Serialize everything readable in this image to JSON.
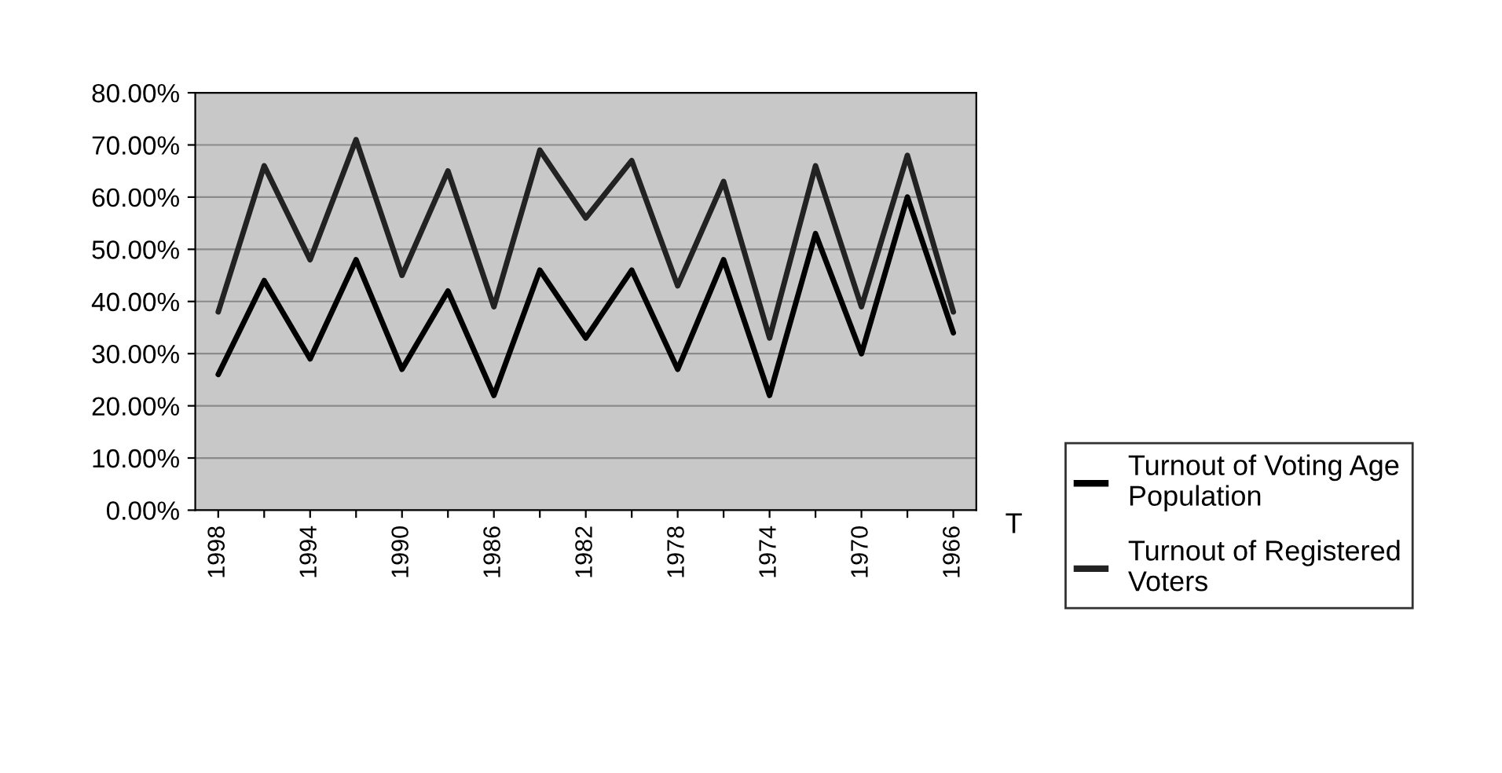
{
  "chart_data": {
    "type": "line",
    "categories": [
      "1998",
      null,
      "1994",
      null,
      "1990",
      null,
      "1986",
      null,
      "1982",
      null,
      "1978",
      null,
      "1974",
      null,
      "1970",
      null,
      "1966"
    ],
    "series": [
      {
        "name": "Turnout of Voting Age Population",
        "color": "#000000",
        "values": [
          26,
          44,
          29,
          48,
          27,
          42,
          22,
          46,
          33,
          46,
          27,
          48,
          22,
          53,
          30,
          60,
          34
        ]
      },
      {
        "name": "Turnout of Registered Voters",
        "color": "#222222",
        "values": [
          38,
          66,
          48,
          71,
          45,
          65,
          39,
          69,
          56,
          67,
          43,
          63,
          33,
          66,
          39,
          68,
          38
        ]
      }
    ],
    "ylim": [
      0,
      80
    ],
    "yticks": [
      {
        "value": 0,
        "label": "0.00%"
      },
      {
        "value": 10,
        "label": "10.00%"
      },
      {
        "value": 20,
        "label": "20.00%"
      },
      {
        "value": 30,
        "label": "30.00%"
      },
      {
        "value": 40,
        "label": "40.00%"
      },
      {
        "value": 50,
        "label": "50.00%"
      },
      {
        "value": 60,
        "label": "60.00%"
      },
      {
        "value": 70,
        "label": "70.00%"
      },
      {
        "value": 80,
        "label": "80.00%"
      }
    ],
    "grid": "y",
    "legend": "right",
    "marker": "none",
    "line_style": "solid",
    "annotations": [
      "T"
    ]
  }
}
